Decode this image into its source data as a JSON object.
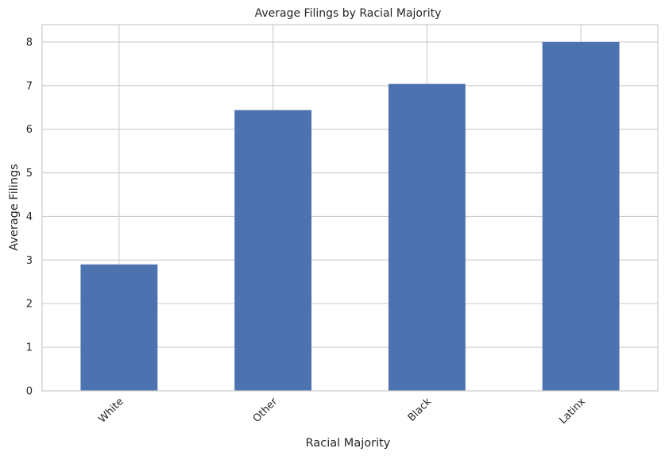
{
  "chart_data": {
    "type": "bar",
    "title": "Average Filings by Racial Majority",
    "xlabel": "Racial Majority",
    "ylabel": "Average Filings",
    "categories": [
      "White",
      "Other",
      "Black",
      "Latinx"
    ],
    "values": [
      2.9,
      6.44,
      7.04,
      8.0
    ],
    "ylim": [
      0,
      8.4
    ],
    "yticks": [
      0,
      1,
      2,
      3,
      4,
      5,
      6,
      7,
      8
    ],
    "grid": true,
    "legend": "none",
    "xtick_rotation_deg": 45,
    "bar_color": "#4c72b0",
    "grid_color": "#cccccc",
    "text_color": "#262626"
  }
}
